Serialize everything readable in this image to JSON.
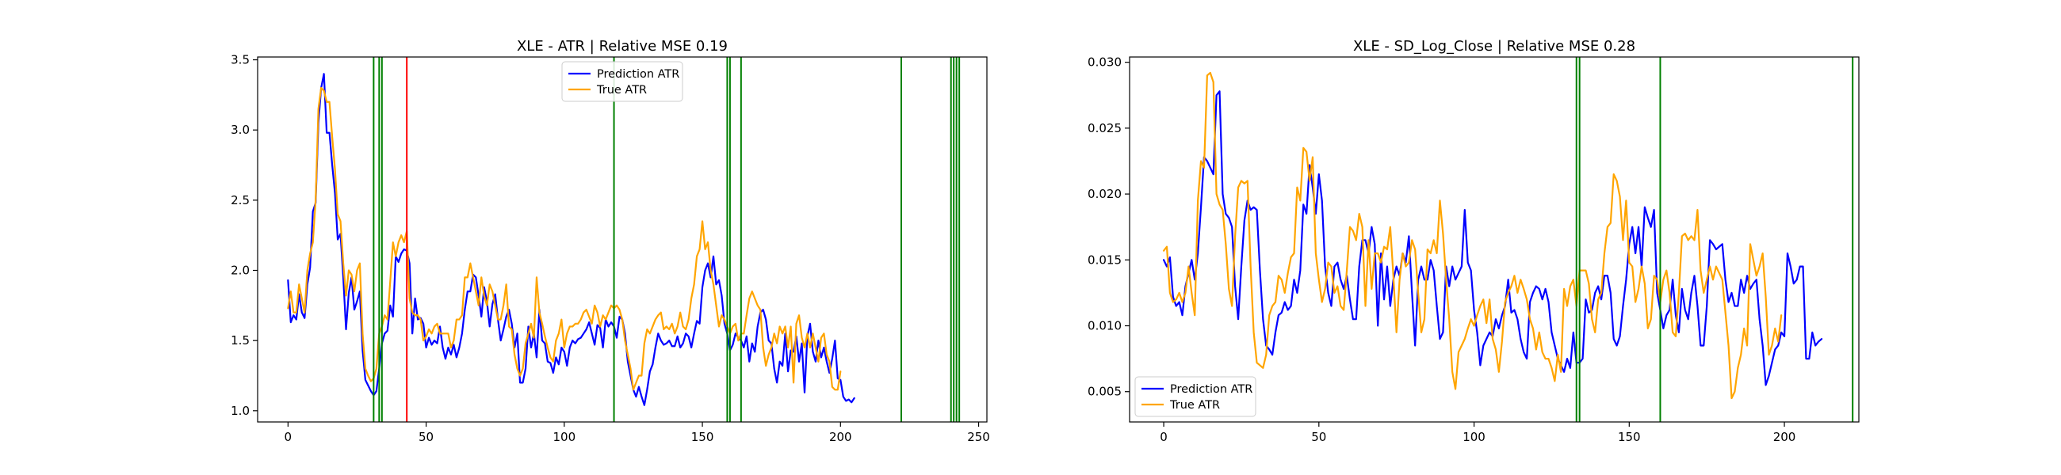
{
  "chart_data": [
    {
      "type": "line",
      "title": "XLE - ATR | Relative MSE 0.19",
      "xlabel": "",
      "ylabel": "",
      "xlim": [
        -11,
        253
      ],
      "ylim": [
        0.92,
        3.52
      ],
      "xticks": [
        0,
        50,
        100,
        150,
        200,
        250
      ],
      "yticks": [
        1.0,
        1.5,
        2.0,
        2.5,
        3.0,
        3.5
      ],
      "ytick_format": 1,
      "legend_position": "upper center",
      "series": [
        {
          "name": "Prediction ATR",
          "color": "#0000ff",
          "x_start": 0,
          "values": [
            1.93,
            1.63,
            1.68,
            1.65,
            1.83,
            1.7,
            1.66,
            1.9,
            2.02,
            2.42,
            2.48,
            3.05,
            3.3,
            3.4,
            2.98,
            2.98,
            2.75,
            2.55,
            2.22,
            2.26,
            1.95,
            1.58,
            1.84,
            1.95,
            1.72,
            1.78,
            1.85,
            1.43,
            1.22,
            1.18,
            1.14,
            1.11,
            1.14,
            1.3,
            1.48,
            1.55,
            1.57,
            1.75,
            1.67,
            2.1,
            2.06,
            2.12,
            2.15,
            2.14,
            2.05,
            1.55,
            1.8,
            1.65,
            1.66,
            1.62,
            1.45,
            1.52,
            1.47,
            1.5,
            1.48,
            1.6,
            1.45,
            1.37,
            1.45,
            1.4,
            1.47,
            1.38,
            1.45,
            1.55,
            1.72,
            1.85,
            1.85,
            1.97,
            1.95,
            1.82,
            1.67,
            1.88,
            1.78,
            1.6,
            1.76,
            1.83,
            1.65,
            1.5,
            1.58,
            1.67,
            1.72,
            1.62,
            1.45,
            1.55,
            1.2,
            1.2,
            1.3,
            1.6,
            1.45,
            1.55,
            1.38,
            1.72,
            1.5,
            1.48,
            1.35,
            1.34,
            1.27,
            1.38,
            1.33,
            1.45,
            1.42,
            1.32,
            1.45,
            1.5,
            1.48,
            1.51,
            1.52,
            1.55,
            1.58,
            1.63,
            1.55,
            1.47,
            1.61,
            1.59,
            1.45,
            1.65,
            1.6,
            1.63,
            1.6,
            1.52,
            1.67,
            1.65,
            1.55,
            1.35,
            1.25,
            1.15,
            1.1,
            1.17,
            1.1,
            1.04,
            1.15,
            1.28,
            1.33,
            1.45,
            1.55,
            1.5,
            1.47,
            1.48,
            1.5,
            1.46,
            1.46,
            1.53,
            1.45,
            1.48,
            1.55,
            1.53,
            1.45,
            1.55,
            1.64,
            1.62,
            1.88,
            2.0,
            2.05,
            1.95,
            2.1,
            1.9,
            1.93,
            1.82,
            1.62,
            1.55,
            1.43,
            1.47,
            1.55,
            1.52,
            1.5,
            1.45,
            1.53,
            1.35,
            1.48,
            1.42,
            1.6,
            1.7,
            1.72,
            1.65,
            1.5,
            1.48,
            1.3,
            1.2,
            1.35,
            1.32,
            1.55,
            1.28,
            1.43,
            1.42,
            1.53,
            1.35,
            1.48,
            1.13,
            1.53,
            1.62,
            1.42,
            1.35,
            1.5,
            1.38,
            1.45,
            1.35,
            1.27,
            1.37,
            1.5,
            1.23,
            1.22,
            1.1,
            1.07,
            1.08,
            1.06,
            1.09
          ]
        },
        {
          "name": "True ATR",
          "color": "#ffa500",
          "x_start": 0,
          "values": [
            1.73,
            1.85,
            1.7,
            1.7,
            1.9,
            1.8,
            1.7,
            2.0,
            2.12,
            2.2,
            2.5,
            3.15,
            3.3,
            3.28,
            3.2,
            3.2,
            2.95,
            2.72,
            2.4,
            2.35,
            2.05,
            1.82,
            2.0,
            1.97,
            1.85,
            2.0,
            2.05,
            1.55,
            1.3,
            1.25,
            1.21,
            1.23,
            1.3,
            1.55,
            1.6,
            1.68,
            1.65,
            1.92,
            2.2,
            2.1,
            2.2,
            2.25,
            2.2,
            2.28,
            1.8,
            1.7,
            1.68,
            1.68,
            1.65,
            1.5,
            1.53,
            1.58,
            1.55,
            1.6,
            1.62,
            1.55,
            1.55,
            1.55,
            1.55,
            1.45,
            1.5,
            1.65,
            1.65,
            1.68,
            1.95,
            1.95,
            2.05,
            1.95,
            1.85,
            1.75,
            1.95,
            1.82,
            1.75,
            1.9,
            1.85,
            1.75,
            1.65,
            1.65,
            1.75,
            1.9,
            1.6,
            1.58,
            1.4,
            1.3,
            1.25,
            1.3,
            1.48,
            1.55,
            1.62,
            1.52,
            1.95,
            1.7,
            1.62,
            1.53,
            1.45,
            1.38,
            1.35,
            1.5,
            1.55,
            1.65,
            1.45,
            1.55,
            1.6,
            1.6,
            1.62,
            1.62,
            1.65,
            1.7,
            1.72,
            1.67,
            1.62,
            1.75,
            1.7,
            1.6,
            1.68,
            1.65,
            1.7,
            1.75,
            1.73,
            1.75,
            1.72,
            1.65,
            1.5,
            1.4,
            1.3,
            1.15,
            1.2,
            1.25,
            1.25,
            1.48,
            1.58,
            1.55,
            1.6,
            1.65,
            1.68,
            1.7,
            1.58,
            1.6,
            1.58,
            1.62,
            1.55,
            1.6,
            1.7,
            1.6,
            1.58,
            1.65,
            1.8,
            1.9,
            2.1,
            2.15,
            2.35,
            2.15,
            2.2,
            2.0,
            1.9,
            1.75,
            1.6,
            1.68,
            1.65,
            1.6,
            1.55,
            1.6,
            1.62,
            1.5,
            1.55,
            1.55,
            1.68,
            1.8,
            1.85,
            1.8,
            1.75,
            1.72,
            1.45,
            1.32,
            1.4,
            1.45,
            1.55,
            1.48,
            1.6,
            1.55,
            1.6,
            1.45,
            1.6,
            1.2,
            1.62,
            1.68,
            1.52,
            1.45,
            1.55,
            1.45,
            1.55,
            1.45,
            1.35,
            1.52,
            1.55,
            1.4,
            1.35,
            1.17,
            1.15,
            1.15,
            1.28
          ]
        }
      ],
      "vlines": [
        {
          "x": 31,
          "color": "#008000"
        },
        {
          "x": 33,
          "color": "#008000"
        },
        {
          "x": 34,
          "color": "#008000"
        },
        {
          "x": 43,
          "color": "#ff0000"
        },
        {
          "x": 118,
          "color": "#008000"
        },
        {
          "x": 159,
          "color": "#008000"
        },
        {
          "x": 160,
          "color": "#008000"
        },
        {
          "x": 164,
          "color": "#008000"
        },
        {
          "x": 222,
          "color": "#008000"
        },
        {
          "x": 240,
          "color": "#008000"
        },
        {
          "x": 241,
          "color": "#008000"
        },
        {
          "x": 242,
          "color": "#008000"
        },
        {
          "x": 243,
          "color": "#008000"
        }
      ]
    },
    {
      "type": "line",
      "title": "XLE - SD_Log_Close | Relative MSE 0.28",
      "xlabel": "",
      "ylabel": "",
      "xlim": [
        -11,
        224
      ],
      "ylim": [
        0.0027,
        0.0304
      ],
      "xticks": [
        0,
        50,
        100,
        150,
        200
      ],
      "yticks": [
        0.005,
        0.01,
        0.015,
        0.02,
        0.025,
        0.03
      ],
      "ytick_format": 3,
      "legend_position": "lower left",
      "series": [
        {
          "name": "Prediction ATR",
          "color": "#0000ff",
          "x_start": 0,
          "values": [
            0.015,
            0.0145,
            0.0152,
            0.0122,
            0.0115,
            0.0118,
            0.0108,
            0.013,
            0.014,
            0.015,
            0.0135,
            0.0155,
            0.019,
            0.0228,
            0.0225,
            0.022,
            0.0215,
            0.0275,
            0.0278,
            0.02,
            0.0185,
            0.0182,
            0.0175,
            0.013,
            0.0105,
            0.0145,
            0.018,
            0.0195,
            0.0188,
            0.019,
            0.0188,
            0.0142,
            0.0105,
            0.0085,
            0.0082,
            0.0078,
            0.0095,
            0.0108,
            0.011,
            0.0118,
            0.0112,
            0.0115,
            0.0135,
            0.0125,
            0.0142,
            0.0192,
            0.0185,
            0.0222,
            0.0205,
            0.0185,
            0.0215,
            0.0195,
            0.0145,
            0.0125,
            0.0115,
            0.0145,
            0.0148,
            0.0135,
            0.0128,
            0.0138,
            0.012,
            0.0105,
            0.0105,
            0.0145,
            0.0165,
            0.0165,
            0.0155,
            0.0175,
            0.0162,
            0.01,
            0.0155,
            0.012,
            0.0145,
            0.0115,
            0.0135,
            0.0145,
            0.0138,
            0.0155,
            0.0148,
            0.0168,
            0.0125,
            0.0085,
            0.0135,
            0.0145,
            0.0135,
            0.0135,
            0.015,
            0.0142,
            0.0115,
            0.009,
            0.0095,
            0.0145,
            0.013,
            0.0145,
            0.0135,
            0.014,
            0.0145,
            0.0188,
            0.0148,
            0.0142,
            0.0112,
            0.0095,
            0.007,
            0.0085,
            0.009,
            0.0095,
            0.0092,
            0.0105,
            0.0098,
            0.0108,
            0.0115,
            0.0135,
            0.011,
            0.0112,
            0.0105,
            0.009,
            0.008,
            0.0075,
            0.0118,
            0.0125,
            0.013,
            0.0128,
            0.012,
            0.0128,
            0.0118,
            0.0095,
            0.0085,
            0.0075,
            0.007,
            0.0065,
            0.0075,
            0.0068,
            0.0095,
            0.0072,
            0.0072,
            0.0075,
            0.012,
            0.011,
            0.0112,
            0.0125,
            0.013,
            0.012,
            0.0138,
            0.0138,
            0.0125,
            0.009,
            0.0085,
            0.0092,
            0.0115,
            0.0135,
            0.0162,
            0.0175,
            0.0155,
            0.0175,
            0.0145,
            0.019,
            0.0182,
            0.0175,
            0.0188,
            0.0125,
            0.0112,
            0.0098,
            0.0108,
            0.0112,
            0.0135,
            0.0108,
            0.0095,
            0.0128,
            0.0112,
            0.0105,
            0.0125,
            0.0138,
            0.0115,
            0.0085,
            0.0085,
            0.0115,
            0.0165,
            0.0162,
            0.0158,
            0.016,
            0.0162,
            0.0135,
            0.0118,
            0.0125,
            0.0115,
            0.0115,
            0.0135,
            0.0125,
            0.0138,
            0.0128,
            0.0132,
            0.0135,
            0.0105,
            0.0085,
            0.0055,
            0.0062,
            0.0072,
            0.0082,
            0.0085,
            0.0095,
            0.0092,
            0.0155,
            0.0145,
            0.0132,
            0.0135,
            0.0145,
            0.0145,
            0.0075,
            0.0075,
            0.0095,
            0.0085,
            0.0088,
            0.009
          ]
        },
        {
          "name": "True ATR",
          "color": "#ffa500",
          "x_start": 0,
          "values": [
            0.0157,
            0.016,
            0.0125,
            0.0118,
            0.012,
            0.0125,
            0.0118,
            0.0125,
            0.0145,
            0.0125,
            0.0108,
            0.0195,
            0.0225,
            0.022,
            0.029,
            0.0292,
            0.0285,
            0.02,
            0.0192,
            0.0188,
            0.0162,
            0.0128,
            0.0115,
            0.0168,
            0.0205,
            0.021,
            0.0208,
            0.021,
            0.0145,
            0.0095,
            0.0072,
            0.007,
            0.0068,
            0.0078,
            0.0108,
            0.0115,
            0.0118,
            0.0138,
            0.0135,
            0.0125,
            0.014,
            0.0152,
            0.0155,
            0.0205,
            0.0195,
            0.0235,
            0.0232,
            0.021,
            0.0228,
            0.0155,
            0.0135,
            0.0118,
            0.0128,
            0.0148,
            0.0145,
            0.0125,
            0.013,
            0.0115,
            0.0112,
            0.0142,
            0.0175,
            0.0172,
            0.0165,
            0.0185,
            0.0175,
            0.0115,
            0.0165,
            0.0128,
            0.0155,
            0.0155,
            0.0148,
            0.016,
            0.0158,
            0.0175,
            0.0138,
            0.0095,
            0.0135,
            0.0155,
            0.0145,
            0.0148,
            0.0165,
            0.0158,
            0.0125,
            0.0095,
            0.0105,
            0.0158,
            0.0155,
            0.0165,
            0.0155,
            0.0195,
            0.017,
            0.0135,
            0.0105,
            0.0065,
            0.0052,
            0.008,
            0.0085,
            0.009,
            0.0098,
            0.0105,
            0.01,
            0.0108,
            0.0115,
            0.012,
            0.0102,
            0.012,
            0.009,
            0.0082,
            0.0065,
            0.0088,
            0.0118,
            0.0125,
            0.013,
            0.0138,
            0.0125,
            0.0135,
            0.0128,
            0.012,
            0.0105,
            0.0098,
            0.0082,
            0.0095,
            0.008,
            0.0075,
            0.0075,
            0.0068,
            0.0058,
            0.0078,
            0.0065,
            0.0128,
            0.0115,
            0.013,
            0.0135,
            0.0115,
            0.0142,
            0.0142,
            0.0142,
            0.0132,
            0.0105,
            0.0095,
            0.012,
            0.0125,
            0.0155,
            0.0175,
            0.0178,
            0.0215,
            0.021,
            0.0198,
            0.0165,
            0.0195,
            0.0148,
            0.0145,
            0.0118,
            0.0128,
            0.0145,
            0.0132,
            0.0098,
            0.0105,
            0.0138,
            0.0135,
            0.0118,
            0.0135,
            0.0142,
            0.0125,
            0.0095,
            0.0092,
            0.0125,
            0.0168,
            0.017,
            0.0165,
            0.0168,
            0.0165,
            0.0188,
            0.0142,
            0.0125,
            0.0135,
            0.0145,
            0.0135,
            0.0145,
            0.014,
            0.0135,
            0.011,
            0.0085,
            0.0045,
            0.005,
            0.0068,
            0.0078,
            0.0098,
            0.0085,
            0.0162,
            0.015,
            0.0138,
            0.0145,
            0.0155,
            0.0122,
            0.0078,
            0.0085,
            0.0098,
            0.0088,
            0.0108
          ]
        }
      ],
      "vlines": [
        {
          "x": 133,
          "color": "#008000"
        },
        {
          "x": 134,
          "color": "#008000"
        },
        {
          "x": 160,
          "color": "#008000"
        },
        {
          "x": 222,
          "color": "#008000"
        }
      ]
    }
  ]
}
